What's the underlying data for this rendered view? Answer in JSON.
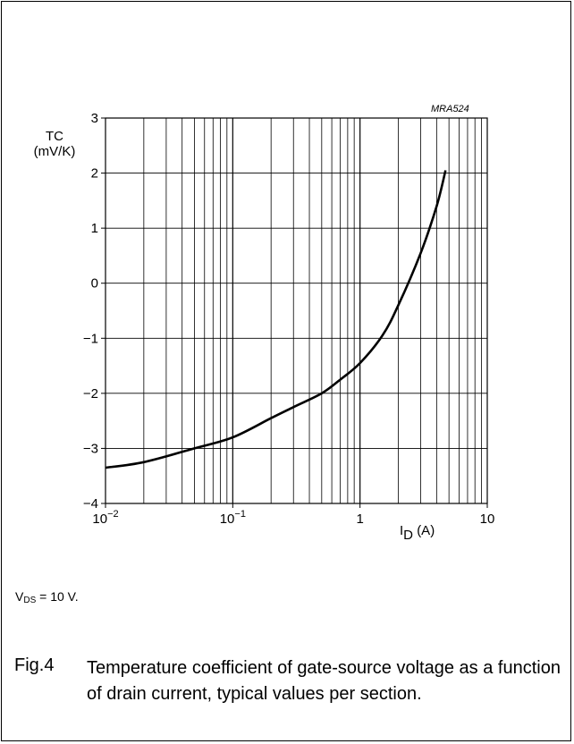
{
  "chart_data": {
    "type": "line",
    "figure_code": "MRA524",
    "ylabel_line1": "TC",
    "ylabel_line2": "(mV/K)",
    "xlabel_base": "I",
    "xlabel_sub": "D",
    "xlabel_unit": "(A)",
    "x_scale": "log",
    "xlim": [
      0.01,
      10
    ],
    "ylim": [
      -4,
      3
    ],
    "grid": true,
    "y_ticks": [
      "3",
      "2",
      "1",
      "0",
      "−1",
      "−2",
      "−3",
      "−4"
    ],
    "x_ticks": [
      {
        "value": 0.01,
        "base": "10",
        "exp": "−2"
      },
      {
        "value": 0.1,
        "base": "10",
        "exp": "−1"
      },
      {
        "value": 1,
        "label": "1"
      },
      {
        "value": 10,
        "label": "10"
      }
    ],
    "series": [
      {
        "x": [
          0.01,
          0.02,
          0.05,
          0.1,
          0.2,
          0.3,
          0.5,
          0.7,
          1.0,
          1.5,
          2.0,
          3.0,
          4.0,
          4.7
        ],
        "y": [
          -3.35,
          -3.25,
          -3.0,
          -2.8,
          -2.45,
          -2.25,
          -2.0,
          -1.75,
          -1.45,
          -0.95,
          -0.4,
          0.55,
          1.4,
          2.05
        ]
      }
    ]
  },
  "condition": {
    "prefix": "V",
    "sub": "DS",
    "text": " = 10 V."
  },
  "caption": {
    "number": "Fig.4",
    "text": "Temperature coefficient of gate-source voltage as a function of drain current, typical values per section."
  }
}
